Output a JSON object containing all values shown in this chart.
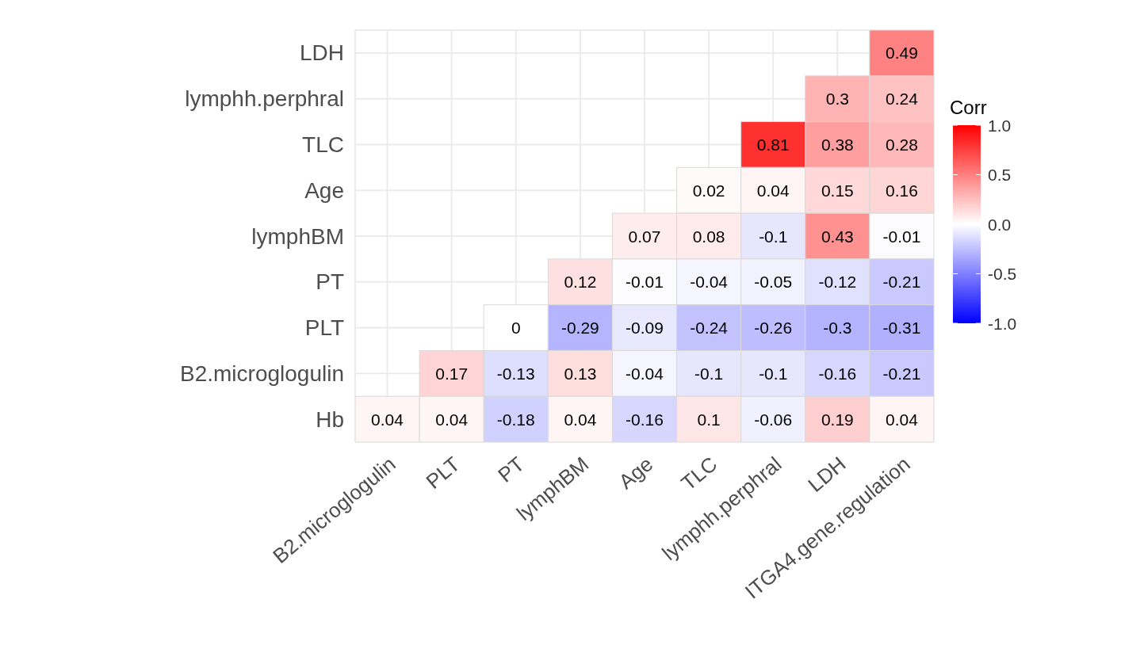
{
  "chart_data": {
    "type": "heatmap",
    "categories": [
      "B2.microglogulin",
      "PLT",
      "PT",
      "lymphBM",
      "Age",
      "TLC",
      "lymphh.perphral",
      "LDH",
      "ITGA4.gene.regulation"
    ],
    "y_categories": [
      "LDH",
      "lymphh.perphral",
      "TLC",
      "Age",
      "lymphBM",
      "PT",
      "PLT",
      "B2.microglogulin",
      "Hb"
    ],
    "cells": [
      [
        null,
        null,
        null,
        null,
        null,
        null,
        null,
        null,
        0.49
      ],
      [
        null,
        null,
        null,
        null,
        null,
        null,
        null,
        0.3,
        0.24
      ],
      [
        null,
        null,
        null,
        null,
        null,
        null,
        0.81,
        0.38,
        0.28
      ],
      [
        null,
        null,
        null,
        null,
        null,
        0.02,
        0.04,
        0.15,
        0.16
      ],
      [
        null,
        null,
        null,
        null,
        0.07,
        0.08,
        -0.1,
        0.43,
        -0.01
      ],
      [
        null,
        null,
        null,
        0.12,
        -0.01,
        -0.04,
        -0.05,
        -0.12,
        -0.21
      ],
      [
        null,
        null,
        0,
        -0.29,
        -0.09,
        -0.24,
        -0.26,
        -0.3,
        -0.31
      ],
      [
        null,
        0.17,
        -0.13,
        0.13,
        -0.04,
        -0.1,
        -0.1,
        -0.16,
        -0.21
      ],
      [
        0.04,
        0.04,
        -0.18,
        0.04,
        -0.16,
        0.1,
        -0.06,
        0.19,
        0.04
      ]
    ],
    "clim": [
      -1,
      1
    ],
    "cticks": [
      {
        "value": 1,
        "label": "1.0"
      },
      {
        "value": 0.5,
        "label": "0.5"
      },
      {
        "value": 0,
        "label": "0.0"
      },
      {
        "value": -0.5,
        "label": "-0.5"
      },
      {
        "value": -1,
        "label": "-1.0"
      }
    ],
    "clabel": "Corr",
    "data_labels": true,
    "grid": true
  }
}
